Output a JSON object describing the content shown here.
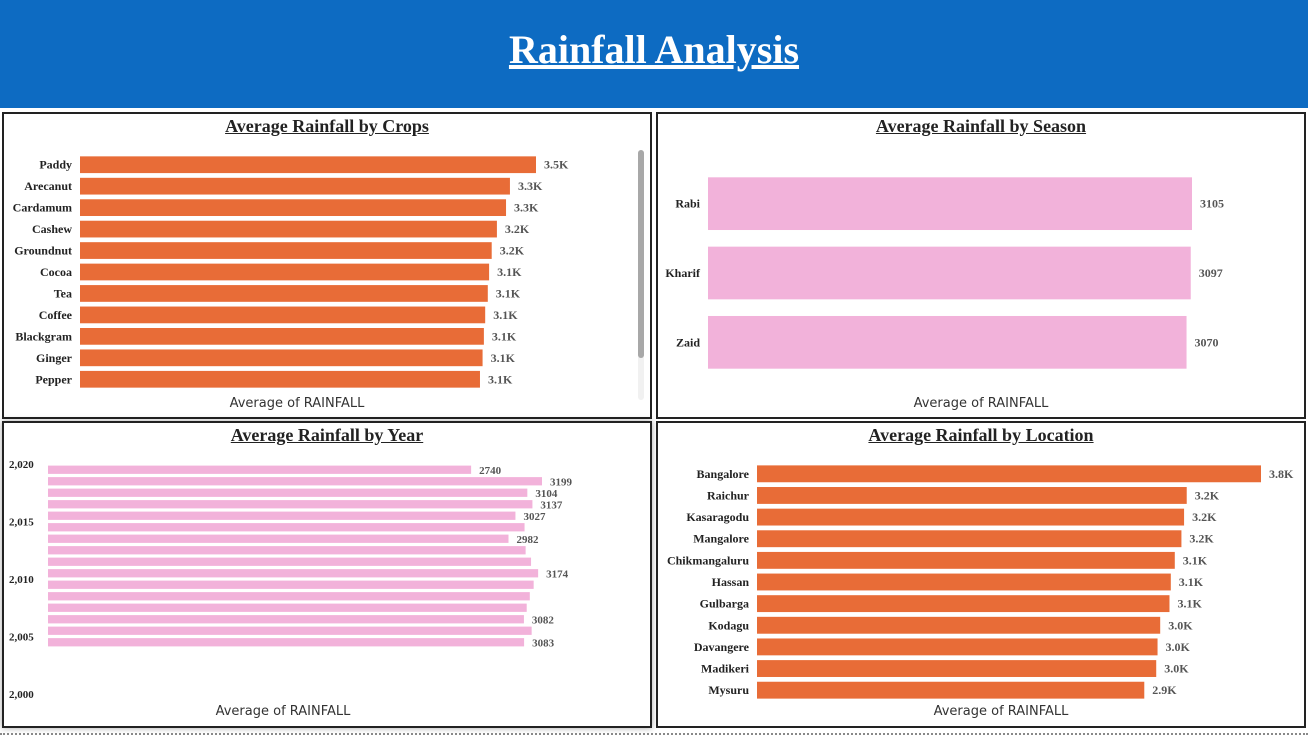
{
  "page": {
    "title": "Rainfall Analysis"
  },
  "colors": {
    "banner": "#0d6bc2",
    "orange": "#e86c37",
    "pink": "#f2b2da"
  },
  "chart_data": [
    {
      "id": "crops",
      "type": "bar",
      "orientation": "horizontal",
      "title": "Average Rainfall by Crops",
      "xlabel": "Average of RAINFALL",
      "ylabel": "",
      "xlim": [
        0,
        3500
      ],
      "color": "#e86c37",
      "categories": [
        "Paddy",
        "Arecanut",
        "Cardamum",
        "Cashew",
        "Groundnut",
        "Cocoa",
        "Tea",
        "Coffee",
        "Blackgram",
        "Ginger",
        "Pepper"
      ],
      "values": [
        3500,
        3300,
        3270,
        3200,
        3160,
        3140,
        3130,
        3110,
        3100,
        3090,
        3070
      ],
      "labels": [
        "3.5K",
        "3.3K",
        "3.3K",
        "3.2K",
        "3.2K",
        "3.1K",
        "3.1K",
        "3.1K",
        "3.1K",
        "3.1K",
        "3.1K"
      ]
    },
    {
      "id": "season",
      "type": "bar",
      "orientation": "horizontal",
      "title": "Average Rainfall by Season",
      "xlabel": "Average of RAINFALL",
      "ylabel": "",
      "xlim": [
        0,
        3105
      ],
      "color": "#f2b2da",
      "categories": [
        "Rabi",
        "Kharif",
        "Zaid"
      ],
      "values": [
        3105,
        3097,
        3070
      ],
      "labels": [
        "3105",
        "3097",
        "3070"
      ]
    },
    {
      "id": "year",
      "type": "bar",
      "orientation": "horizontal",
      "title": "Average Rainfall by Year",
      "xlabel": "Average of RAINFALL",
      "ylabel": "",
      "xlim": [
        0,
        3199
      ],
      "ylim": [
        2000,
        2020
      ],
      "color": "#f2b2da",
      "yticks": [
        "2,020",
        "2,015",
        "2,010",
        "2,005",
        "2,000"
      ],
      "ytick_values": [
        2020,
        2015,
        2010,
        2005,
        2000
      ],
      "years": [
        2019,
        2018,
        2017,
        2016,
        2015,
        2014,
        2013,
        2012,
        2011,
        2010,
        2009,
        2008,
        2007,
        2006,
        2005,
        2004
      ],
      "values": [
        2740,
        3199,
        3104,
        3137,
        3027,
        3086,
        2982,
        3093,
        3128,
        3174,
        3145,
        3120,
        3100,
        3082,
        3132,
        3083
      ],
      "labels": [
        "2740",
        "3199",
        "3104",
        "3137",
        "3027",
        "",
        "2982",
        "",
        "",
        "3174",
        "",
        "",
        "",
        "3082",
        "",
        "3083"
      ]
    },
    {
      "id": "location",
      "type": "bar",
      "orientation": "horizontal",
      "title": "Average Rainfall by Location",
      "xlabel": "Average of RAINFALL",
      "ylabel": "",
      "xlim": [
        0,
        3800
      ],
      "color": "#e86c37",
      "categories": [
        "Bangalore",
        "Raichur",
        "Kasaragodu",
        "Mangalore",
        "Chikmangaluru",
        "Hassan",
        "Gulbarga",
        "Kodagu",
        "Davangere",
        "Madikeri",
        "Mysuru"
      ],
      "values": [
        3800,
        3240,
        3220,
        3200,
        3150,
        3120,
        3110,
        3040,
        3020,
        3010,
        2920
      ],
      "labels": [
        "3.8K",
        "3.2K",
        "3.2K",
        "3.2K",
        "3.1K",
        "3.1K",
        "3.1K",
        "3.0K",
        "3.0K",
        "3.0K",
        "2.9K"
      ]
    }
  ]
}
